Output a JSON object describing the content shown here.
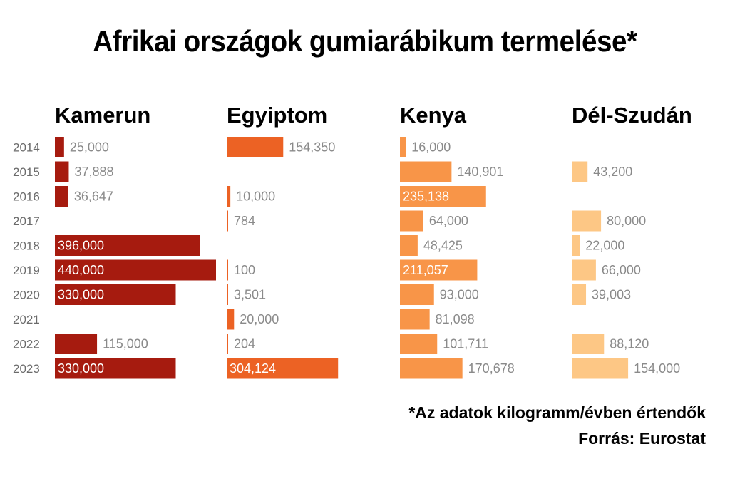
{
  "title": "Afrikai országok gumiarábikum termelése*",
  "footnote": "*Az adatok kilogramm/évben értendők",
  "source": "Forrás: Eurostat",
  "chart_data": {
    "type": "bar",
    "orientation": "horizontal",
    "categories": [
      "2014",
      "2015",
      "2016",
      "2017",
      "2018",
      "2019",
      "2020",
      "2021",
      "2022",
      "2023"
    ],
    "series": [
      {
        "name": "Kamerun",
        "color": "#a61b0f",
        "values": [
          25000,
          37888,
          36647,
          null,
          396000,
          440000,
          330000,
          null,
          115000,
          330000
        ],
        "labels": [
          "25,000",
          "37,888",
          "36,647",
          "",
          "396,000",
          "440,000",
          "330,000",
          "",
          "115,000",
          "330,000"
        ]
      },
      {
        "name": "Egyiptom",
        "color": "#ec6224",
        "values": [
          154350,
          null,
          10000,
          784,
          null,
          100,
          3501,
          20000,
          204,
          304124
        ],
        "labels": [
          "154,350",
          "",
          "10,000",
          "784",
          "",
          "100",
          "3,501",
          "20,000",
          "204",
          "304,124"
        ]
      },
      {
        "name": "Kenya",
        "color": "#f89548",
        "values": [
          16000,
          140901,
          235138,
          64000,
          48425,
          211057,
          93000,
          81098,
          101711,
          170678
        ],
        "labels": [
          "16,000",
          "140,901",
          "235,138",
          "64,000",
          "48,425",
          "211,057",
          "93,000",
          "81,098",
          "101,711",
          "170,678"
        ]
      },
      {
        "name": "Dél-Szudán",
        "color": "#fdc785",
        "values": [
          null,
          43200,
          null,
          80000,
          22000,
          66000,
          39003,
          null,
          88120,
          154000
        ],
        "labels": [
          "",
          "43,200",
          "",
          "80,000",
          "22,000",
          "66,000",
          "39,003",
          "",
          "88,120",
          "154,000"
        ]
      }
    ],
    "unit": "kilogramm/év"
  }
}
